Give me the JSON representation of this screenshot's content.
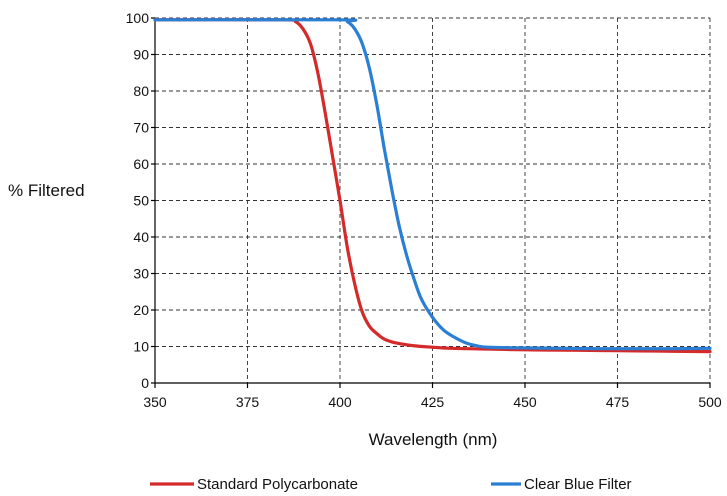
{
  "chart_data": {
    "type": "line",
    "title": "",
    "xlabel": "Wavelength (nm)",
    "ylabel": "% Filtered",
    "xlim": [
      350,
      500
    ],
    "ylim": [
      0,
      100
    ],
    "x_ticks": [
      350,
      375,
      400,
      425,
      450,
      475,
      500
    ],
    "y_ticks": [
      0,
      10,
      20,
      30,
      40,
      50,
      60,
      70,
      80,
      90,
      100
    ],
    "grid": true,
    "legend_position": "bottom",
    "series": [
      {
        "name": "Standard Polycarbonate",
        "color": "#d42a2a",
        "x": [
          350,
          385,
          388,
          390,
          392,
          394,
          396,
          398,
          400,
          402,
          404,
          406,
          408,
          410,
          412,
          415,
          420,
          425,
          430,
          440,
          450,
          460,
          470,
          480,
          490,
          500
        ],
        "y": [
          99.5,
          99.5,
          99,
          97,
          93,
          85,
          74,
          62,
          50,
          37,
          27,
          19.5,
          15.5,
          13.5,
          12,
          11,
          10.2,
          9.8,
          9.5,
          9.3,
          9.1,
          9,
          8.9,
          8.8,
          8.7,
          8.6
        ]
      },
      {
        "name": "Clear Blue Filter",
        "color": "#2a7fd4",
        "x": [
          350,
          400,
          402,
          404,
          406,
          408,
          410,
          412,
          414,
          416,
          418,
          420,
          422,
          425,
          428,
          431,
          434,
          437,
          440,
          450,
          460,
          470,
          480,
          490,
          500
        ],
        "y": [
          99.5,
          99.5,
          99,
          97,
          93,
          86,
          76,
          64,
          53,
          43,
          35,
          28.5,
          23,
          18,
          14.5,
          12.5,
          11,
          10.2,
          9.8,
          9.6,
          9.5,
          9.4,
          9.4,
          9.4,
          9.5
        ]
      }
    ]
  }
}
